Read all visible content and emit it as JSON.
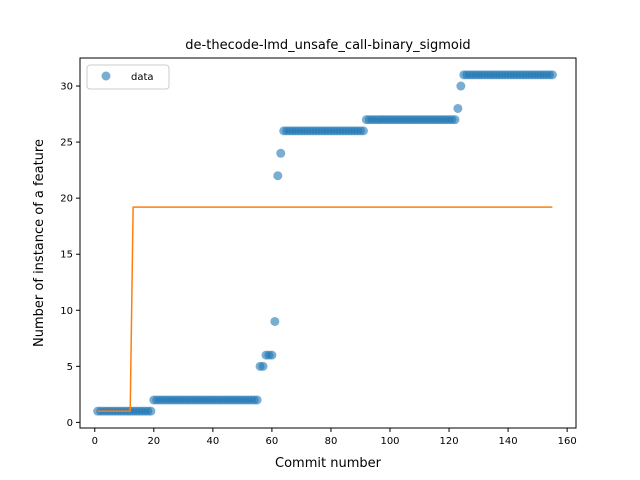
{
  "chart_data": {
    "type": "scatter",
    "title": "de-thecode-lmd_unsafe_call-binary_sigmoid",
    "xlabel": "Commit number",
    "ylabel": "Number of instance of a feature",
    "xlim": [
      -5,
      163
    ],
    "ylim": [
      -0.5,
      32.5
    ],
    "xticks": [
      0,
      20,
      40,
      60,
      80,
      100,
      120,
      140,
      160
    ],
    "yticks": [
      0,
      5,
      10,
      15,
      20,
      25,
      30
    ],
    "grid": false,
    "legend": {
      "placement": "upper-left",
      "entries": [
        "data"
      ]
    },
    "colors": {
      "data": "#1f77b4",
      "fit": "#ff7f0e"
    },
    "series": [
      {
        "name": "data",
        "kind": "scatter",
        "segments": [
          {
            "x_from": 1,
            "x_to": 19,
            "y": 1
          },
          {
            "x_from": 20,
            "x_to": 55,
            "y": 2
          },
          {
            "x_from": 56,
            "x_to": 57,
            "y": 5
          },
          {
            "x_from": 58,
            "x_to": 60,
            "y": 6
          },
          {
            "x_from": 61,
            "x_to": 61,
            "y": 9
          },
          {
            "x_from": 62,
            "x_to": 62,
            "y": 22
          },
          {
            "x_from": 63,
            "x_to": 63,
            "y": 24
          },
          {
            "x_from": 64,
            "x_to": 91,
            "y": 26
          },
          {
            "x_from": 92,
            "x_to": 122,
            "y": 27
          },
          {
            "x_from": 123,
            "x_to": 123,
            "y": 28
          },
          {
            "x_from": 124,
            "x_to": 124,
            "y": 30
          },
          {
            "x_from": 125,
            "x_to": 155,
            "y": 31
          }
        ]
      },
      {
        "kind": "line",
        "x": [
          1,
          12,
          13,
          155
        ],
        "y": [
          1.0,
          1.0,
          19.2,
          19.2
        ]
      }
    ]
  }
}
